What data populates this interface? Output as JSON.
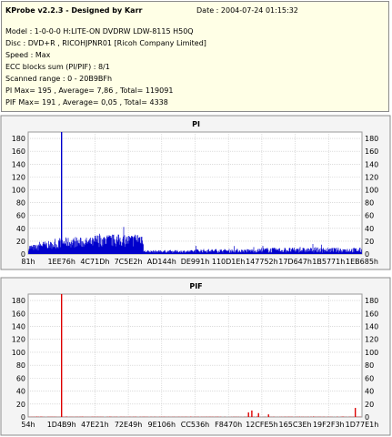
{
  "header": {
    "title": "KProbe v2.2.3 - Designed by Karr",
    "date": "Date : 2004-07-24 01:15:32",
    "lines": [
      "Model : 1-0-0-0 H:LITE-ON DVDRW LDW-8115   H50Q",
      "Disc : DVD+R , RICOHJPNR01 [Ricoh Company Limited]",
      "Speed : Max",
      "ECC blocks sum (PI/PIF) : 8/1",
      "Scanned range : 0 - 20B9BFh",
      "PI Max= 195 , Average= 7,86 , Total= 119091",
      "PIF Max= 191 , Average= 0,05 , Total= 4338"
    ]
  },
  "chart_data": [
    {
      "type": "bar",
      "title": "PI",
      "ylim": [
        0,
        190
      ],
      "yticks": [
        0,
        20,
        40,
        60,
        80,
        100,
        120,
        140,
        160,
        180
      ],
      "grid": true,
      "color": "#0000cc",
      "xtick_labels": [
        "81h",
        "1EE76h",
        "4C71Dh",
        "7C5E2h",
        "AD144h",
        "DE991h",
        "110D1Eh",
        "147752h",
        "17D647h",
        "1B5771h",
        "1EB685h"
      ],
      "series": [
        {
          "segments": [
            {
              "from": 0.0,
              "to": 0.03,
              "avg": 10,
              "var": 5
            },
            {
              "from": 0.03,
              "to": 0.09,
              "avg": 14,
              "var": 6
            },
            {
              "from": 0.09,
              "to": 0.2,
              "avg": 18,
              "var": 8
            },
            {
              "from": 0.2,
              "to": 0.32,
              "avg": 21,
              "var": 10
            },
            {
              "from": 0.32,
              "to": 0.345,
              "avg": 24,
              "var": 10
            },
            {
              "from": 0.345,
              "to": 0.5,
              "avg": 4,
              "var": 2
            },
            {
              "from": 0.5,
              "to": 0.7,
              "avg": 5,
              "var": 3
            },
            {
              "from": 0.7,
              "to": 0.87,
              "avg": 6,
              "var": 4
            },
            {
              "from": 0.87,
              "to": 1.0,
              "avg": 6,
              "var": 4
            }
          ],
          "spikes": [
            {
              "pos": 0.1,
              "value": 195
            }
          ]
        }
      ]
    },
    {
      "type": "bar",
      "title": "PIF",
      "ylim": [
        0,
        190
      ],
      "yticks": [
        0,
        20,
        40,
        60,
        80,
        100,
        120,
        140,
        160,
        180
      ],
      "grid": true,
      "color": "#dd0000",
      "xtick_labels": [
        "54h",
        "1D4B9h",
        "47E21h",
        "72E49h",
        "9E106h",
        "CC536h",
        "F8470h",
        "12CFE5h",
        "165C3Eh",
        "19F2F3h",
        "1D77E1h"
      ],
      "series": [
        {
          "segments": [
            {
              "from": 0.0,
              "to": 1.0,
              "avg": 0.1,
              "var": 0.3
            }
          ],
          "spikes": [
            {
              "pos": 0.1,
              "value": 191
            },
            {
              "pos": 0.66,
              "value": 7
            },
            {
              "pos": 0.67,
              "value": 10
            },
            {
              "pos": 0.69,
              "value": 6
            },
            {
              "pos": 0.72,
              "value": 4
            },
            {
              "pos": 0.98,
              "value": 14
            }
          ]
        }
      ]
    }
  ]
}
